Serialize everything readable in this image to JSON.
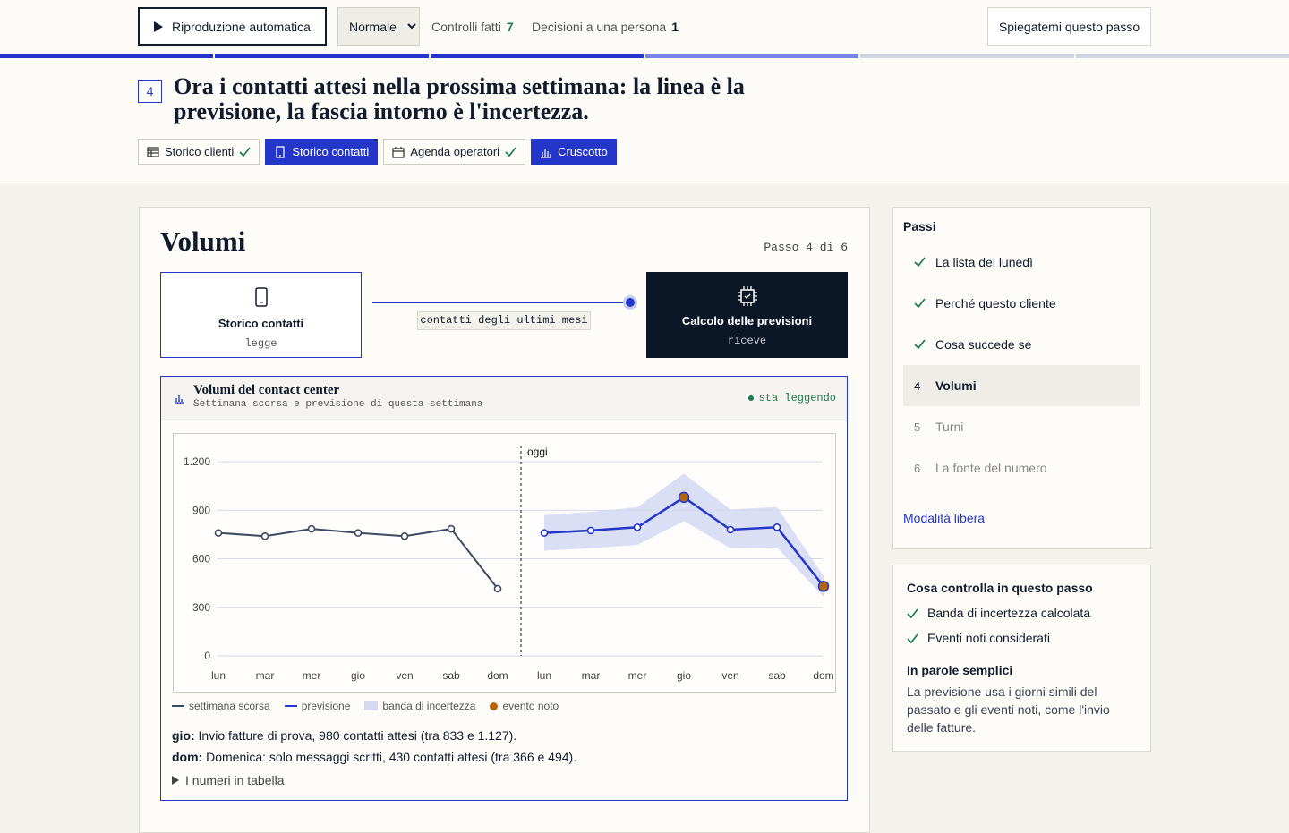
{
  "toolbar": {
    "autoplay": "Riproduzione automatica",
    "speed": "Normale",
    "checks_label": "Controlli fatti",
    "checks_count": 7,
    "decisions_label": "Decisioni a una persona",
    "decisions_count": 1,
    "explain": "Spiegatemi questo passo"
  },
  "header": {
    "progress": [
      "done",
      "done",
      "done",
      "current",
      "todo",
      "todo"
    ],
    "step_number": 4,
    "title": "Ora i contatti attesi nella prossima settimana: la linea è la previsione, la fascia intorno è l'incertezza.",
    "tabs": [
      {
        "label": "Storico clienti",
        "state": "done",
        "icon": "table"
      },
      {
        "label": "Storico contatti",
        "state": "active",
        "icon": "phone"
      },
      {
        "label": "Agenda operatori",
        "state": "done",
        "icon": "calendar"
      },
      {
        "label": "Cruscotto",
        "state": "active",
        "icon": "chart"
      }
    ]
  },
  "main": {
    "title": "Volumi",
    "step_label": "Passo 4 di 6",
    "flow": {
      "source": {
        "title": "Storico contatti",
        "role": "legge"
      },
      "edge": "contatti degli ultimi mesi",
      "target": {
        "title": "Calcolo delle previsioni",
        "role": "riceve"
      }
    },
    "panel": {
      "title": "Volumi del contact center",
      "subtitle": "Settimana scorsa e previsione di questa settimana",
      "status": "sta leggendo",
      "notes": [
        {
          "day": "gio:",
          "text": "Invio fatture di prova, 980 contatti attesi (tra 833 e 1.127)."
        },
        {
          "day": "dom:",
          "text": "Domenica: solo messaggi scritti, 430 contatti attesi (tra 366 e 494)."
        }
      ],
      "table_toggle": "I numeri in tabella"
    }
  },
  "chart_data": {
    "type": "line",
    "categories": [
      "lun",
      "mar",
      "mer",
      "gio",
      "ven",
      "sab",
      "dom",
      "lun",
      "mar",
      "mer",
      "gio",
      "ven",
      "sab",
      "dom"
    ],
    "series": [
      {
        "name": "settimana scorsa",
        "color": "#3d4a63",
        "values": [
          760,
          740,
          785,
          760,
          740,
          785,
          415,
          null,
          null,
          null,
          null,
          null,
          null,
          null
        ]
      },
      {
        "name": "previsione",
        "color": "#2436c9",
        "values": [
          null,
          null,
          null,
          null,
          null,
          null,
          null,
          760,
          775,
          795,
          980,
          780,
          795,
          430
        ]
      }
    ],
    "band": {
      "name": "banda di incertezza",
      "color": "#d5d9f3",
      "lower": [
        null,
        null,
        null,
        null,
        null,
        null,
        null,
        650,
        665,
        685,
        833,
        665,
        670,
        366
      ],
      "upper": [
        null,
        null,
        null,
        null,
        null,
        null,
        null,
        870,
        890,
        920,
        1127,
        905,
        920,
        494
      ]
    },
    "events": {
      "name": "evento noto",
      "color": "#b5650d",
      "values": [
        null,
        null,
        null,
        null,
        null,
        null,
        null,
        null,
        null,
        null,
        980,
        null,
        null,
        430
      ]
    },
    "annotation": "oggi",
    "ylim": [
      0,
      1300
    ],
    "yticks": [
      0,
      300,
      600,
      900,
      {
        "value": 1200,
        "label": "1.200"
      }
    ],
    "grid": true
  },
  "sidebar": {
    "steps_title": "Passi",
    "steps": [
      {
        "label": "La lista del lunedì",
        "state": "done"
      },
      {
        "label": "Perché questo cliente",
        "state": "done"
      },
      {
        "label": "Cosa succede se",
        "state": "done"
      },
      {
        "number": 4,
        "label": "Volumi",
        "state": "current"
      },
      {
        "number": 5,
        "label": "Turni",
        "state": "todo"
      },
      {
        "number": 6,
        "label": "La fonte del numero",
        "state": "todo"
      }
    ],
    "free_mode": "Modalità libera",
    "checks": {
      "title": "Cosa controlla in questo passo",
      "items": [
        "Banda di incertezza calcolata",
        "Eventi noti considerati"
      ],
      "plain_title": "In parole semplici",
      "plain_text": "La previsione usa i giorni simili del passato e gli eventi noti, come l'invio delle fatture."
    }
  }
}
